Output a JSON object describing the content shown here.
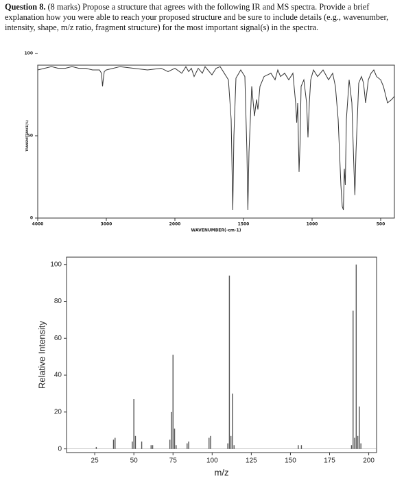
{
  "question": {
    "label": "Question 8.",
    "text": "(8 marks) Propose a structure that agrees with the following IR and MS spectra. Provide a brief explanation how you were able to reach your proposed structure and be sure to include details (e.g., wavenumber, intensity, shape, m/z ratio, fragment structure) for the most important signal(s) in the spectra."
  },
  "chart_data": [
    {
      "type": "line",
      "xlabel": "WAVENUMBER(-cm-1)",
      "ylabel": "TRANSMITTANCE(%)",
      "xlim": [
        4000,
        400
      ],
      "xbreak": 2000,
      "ylim": [
        0,
        100
      ],
      "xticks": [
        4000,
        3000,
        2000,
        1500,
        1000,
        500
      ],
      "yticks": [
        0,
        50,
        100
      ],
      "color": "#333333",
      "x": [
        4000,
        3900,
        3800,
        3700,
        3600,
        3500,
        3400,
        3300,
        3200,
        3100,
        3070,
        3055,
        3045,
        3030,
        3000,
        2900,
        2800,
        2600,
        2400,
        2200,
        2100,
        2000,
        1950,
        1920,
        1900,
        1880,
        1860,
        1830,
        1800,
        1780,
        1760,
        1730,
        1700,
        1670,
        1640,
        1610,
        1590,
        1578,
        1570,
        1555,
        1520,
        1490,
        1475,
        1468,
        1460,
        1440,
        1420,
        1405,
        1395,
        1380,
        1350,
        1300,
        1270,
        1250,
        1230,
        1200,
        1170,
        1140,
        1120,
        1112,
        1105,
        1095,
        1088,
        1080,
        1060,
        1040,
        1030,
        1020,
        1010,
        990,
        960,
        920,
        880,
        850,
        830,
        810,
        790,
        780,
        772,
        765,
        758,
        750,
        730,
        710,
        695,
        688,
        680,
        660,
        640,
        625,
        610,
        590,
        570,
        550,
        530,
        500,
        480,
        450,
        420,
        400
      ],
      "values": [
        90,
        91,
        92,
        91,
        91,
        92,
        91,
        91,
        90,
        90,
        88,
        80,
        84,
        89,
        90,
        91,
        92,
        91,
        90,
        91,
        89,
        91,
        88,
        92,
        89,
        91,
        86,
        91,
        88,
        92,
        90,
        87,
        91,
        92,
        88,
        84,
        60,
        5,
        50,
        85,
        90,
        86,
        40,
        5,
        40,
        80,
        62,
        72,
        66,
        80,
        86,
        88,
        84,
        90,
        86,
        88,
        84,
        88,
        70,
        58,
        70,
        28,
        45,
        80,
        84,
        70,
        49,
        70,
        84,
        90,
        86,
        90,
        84,
        88,
        80,
        60,
        20,
        7,
        5,
        30,
        20,
        60,
        84,
        70,
        30,
        14,
        40,
        82,
        86,
        82,
        70,
        84,
        88,
        90,
        86,
        84,
        80,
        70,
        72,
        74
      ]
    },
    {
      "type": "bar",
      "xlabel": "m/z",
      "ylabel": "Relative Intensity",
      "xlim": [
        7,
        205
      ],
      "ylim": [
        -2,
        104
      ],
      "xticks": [
        25,
        50,
        75,
        100,
        125,
        150,
        175,
        200
      ],
      "yticks": [
        0,
        20,
        40,
        60,
        80,
        100
      ],
      "color": "#555555",
      "x": [
        26,
        37,
        38,
        49,
        50,
        51,
        55,
        61,
        62,
        73,
        74,
        75,
        76,
        77,
        84,
        85,
        98,
        99,
        110,
        111,
        112,
        113,
        114,
        155,
        157,
        189,
        190,
        191,
        192,
        193,
        194,
        195
      ],
      "values": [
        1,
        5,
        6,
        4,
        27,
        7,
        4,
        2,
        2,
        5,
        20,
        51,
        11,
        2,
        3,
        4,
        6,
        7,
        3,
        94,
        7,
        30,
        2,
        2,
        2,
        2,
        75,
        6,
        100,
        7,
        23,
        3
      ]
    }
  ]
}
